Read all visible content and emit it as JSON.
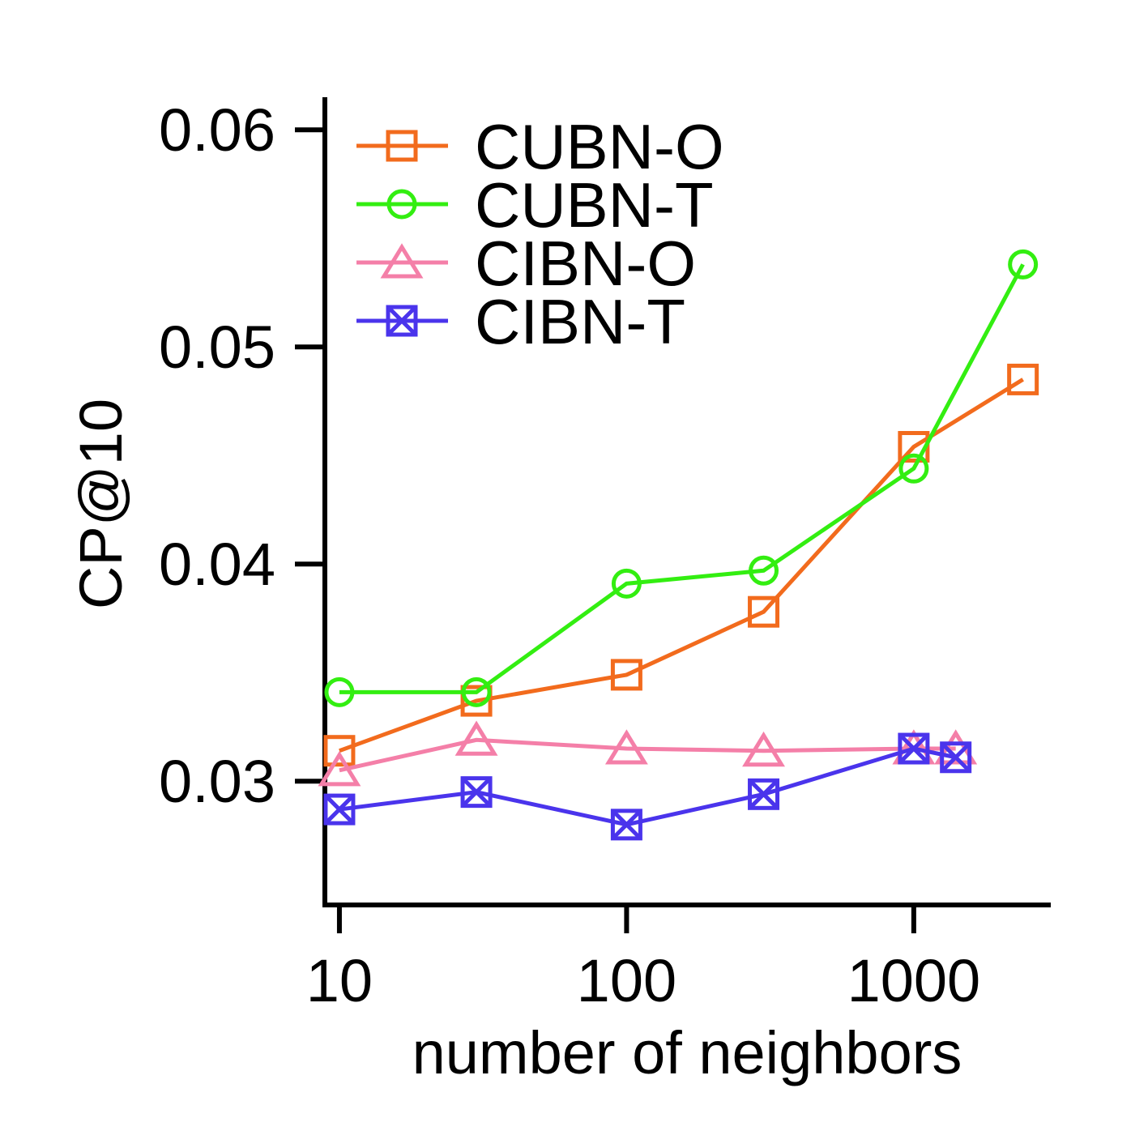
{
  "chart_data": {
    "type": "line",
    "title": "",
    "xlabel": "number of neighbors",
    "ylabel": "CP@10",
    "xscale": "log",
    "xlim": [
      8.9,
      3000
    ],
    "ylim": [
      0.0243,
      0.0615
    ],
    "xticks": [
      10,
      100,
      1000
    ],
    "xtick_labels": [
      "10",
      "100",
      "1000"
    ],
    "yticks": [
      0.03,
      0.04,
      0.05,
      0.06
    ],
    "ytick_labels": [
      "0.03",
      "0.04",
      "0.05",
      "0.06"
    ],
    "grid": false,
    "legend_position": "top-left",
    "series": [
      {
        "name": "CUBN-O",
        "color": "#f26b1d",
        "marker": "square",
        "x": [
          10,
          30,
          100,
          300,
          1000,
          2400
        ],
        "y": [
          0.0314,
          0.0337,
          0.0349,
          0.0378,
          0.0454,
          0.0485
        ]
      },
      {
        "name": "CUBN-T",
        "color": "#33ee11",
        "marker": "circle",
        "x": [
          10,
          30,
          100,
          300,
          1000,
          2400
        ],
        "y": [
          0.0341,
          0.0341,
          0.0391,
          0.0397,
          0.0444,
          0.0538
        ]
      },
      {
        "name": "CIBN-O",
        "color": "#f47fa8",
        "marker": "triangle",
        "x": [
          10,
          30,
          100,
          300,
          1000,
          1400
        ],
        "y": [
          0.0305,
          0.0319,
          0.0315,
          0.0314,
          0.0315,
          0.0315
        ]
      },
      {
        "name": "CIBN-T",
        "color": "#4a34ec",
        "marker": "boxed-x",
        "x": [
          10,
          30,
          100,
          300,
          1000,
          1400
        ],
        "y": [
          0.0287,
          0.0295,
          0.028,
          0.0294,
          0.0315,
          0.0311
        ]
      }
    ]
  }
}
